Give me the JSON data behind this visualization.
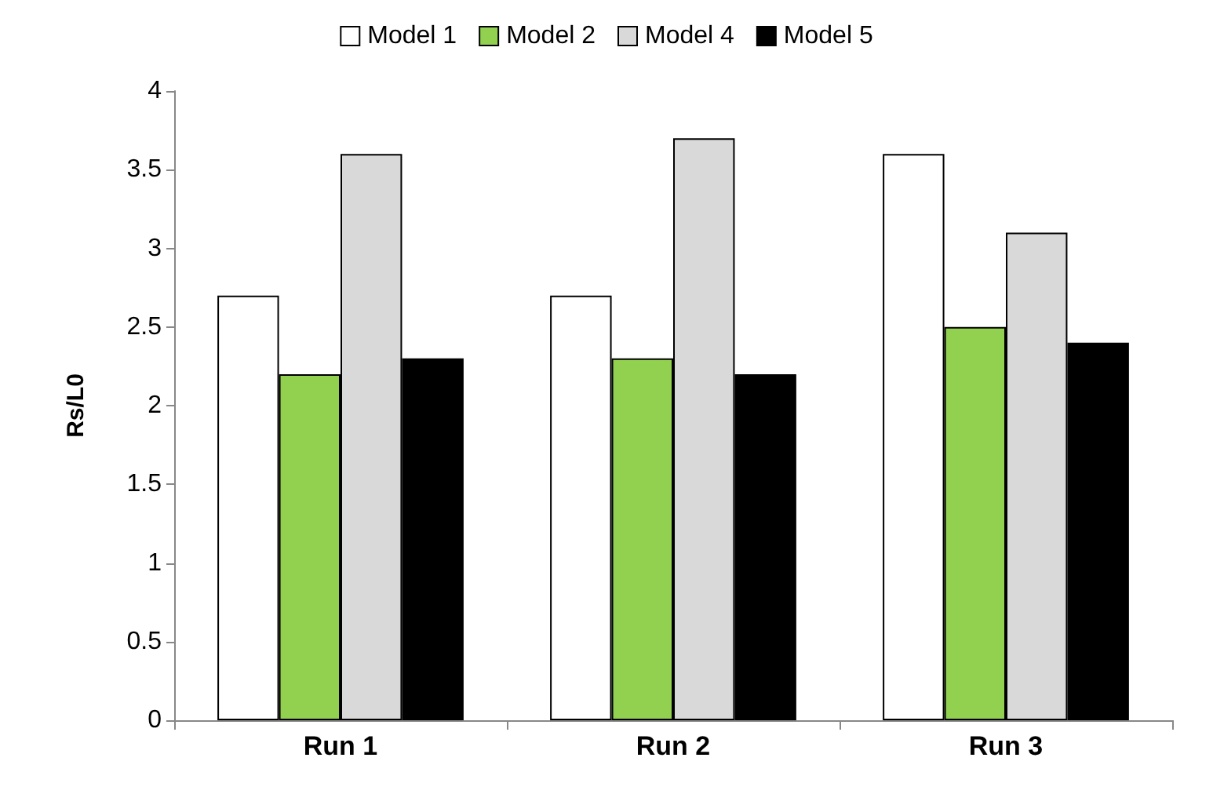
{
  "chart_data": {
    "type": "bar",
    "ylabel": "Rs/L0",
    "categories": [
      "Run 1",
      "Run 2",
      "Run 3"
    ],
    "series": [
      {
        "name": "Model 1",
        "color": "#ffffff",
        "values": [
          2.7,
          2.7,
          3.6
        ]
      },
      {
        "name": "Model 2",
        "color": "#92d050",
        "values": [
          2.2,
          2.3,
          2.5
        ]
      },
      {
        "name": "Model 4",
        "color": "#d9d9d9",
        "values": [
          3.6,
          3.7,
          3.1
        ]
      },
      {
        "name": "Model 5",
        "color": "#000000",
        "values": [
          2.3,
          2.2,
          2.4
        ]
      }
    ],
    "ylim": [
      0,
      4
    ],
    "yticks": [
      0,
      0.5,
      1,
      1.5,
      2,
      2.5,
      3,
      3.5,
      4
    ],
    "grid": false,
    "legend": "top"
  }
}
